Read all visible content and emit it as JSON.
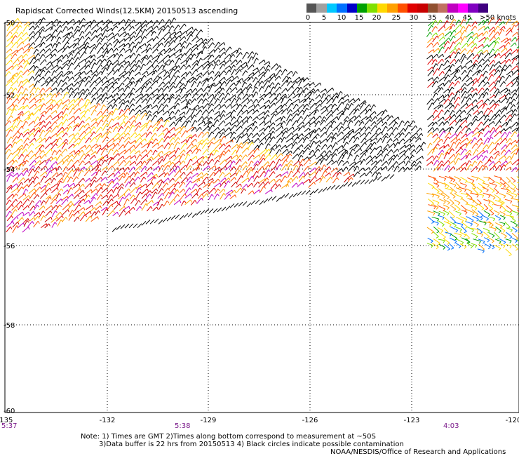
{
  "title": "Rapidscat Corrected Winds(12.5KM) 20150513 ascending",
  "colorbar": {
    "colors": [
      "#555555",
      "#a0a0a0",
      "#00c8ff",
      "#0070ff",
      "#0000c8",
      "#00a000",
      "#80e000",
      "#ffd800",
      "#ffa000",
      "#ff5000",
      "#e00000",
      "#c80000",
      "#905030",
      "#c07060",
      "#c000c0",
      "#ff00ff",
      "#8000c0",
      "#400080"
    ],
    "labels": [
      "0",
      "5",
      "10",
      "15",
      "20",
      "25",
      "30",
      "35",
      "40",
      "45",
      ">50 knots"
    ]
  },
  "map": {
    "lat_labels": [
      "-50",
      "-52",
      "-54",
      "-56",
      "-58",
      "-60"
    ],
    "lon_labels": [
      "-135",
      "-132",
      "-129",
      "-126",
      "-123",
      "-120"
    ],
    "time_labels": [
      "5:37",
      "5:38",
      "4:03"
    ]
  },
  "notes": {
    "line1": "Note: 1) Times are GMT 2)Times along bottom correspond to measurement at ~50S",
    "line2": "3)Data buffer is 22 hrs from 20150513 4) Black circles indicate possible contamination",
    "line3": "NOAA/NESDIS/Office of Research and Applications"
  }
}
